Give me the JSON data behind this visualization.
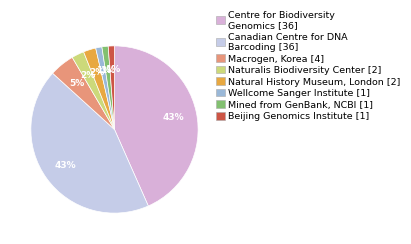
{
  "labels": [
    "Centre for Biodiversity\nGenomics [36]",
    "Canadian Centre for DNA\nBarcoding [36]",
    "Macrogen, Korea [4]",
    "Naturalis Biodiversity Center [2]",
    "Natural History Museum, London [2]",
    "Wellcome Sanger Institute [1]",
    "Mined from GenBank, NCBI [1]",
    "Beijing Genomics Institute [1]"
  ],
  "values": [
    36,
    36,
    4,
    2,
    2,
    1,
    1,
    1
  ],
  "colors": [
    "#d9b0d9",
    "#c5cce8",
    "#e8957a",
    "#ccd97a",
    "#e8a840",
    "#9ab8d8",
    "#82c070",
    "#cd5545"
  ],
  "background_color": "#ffffff",
  "legend_fontsize": 6.8,
  "text_fontsize": 6.5,
  "startangle": 90
}
